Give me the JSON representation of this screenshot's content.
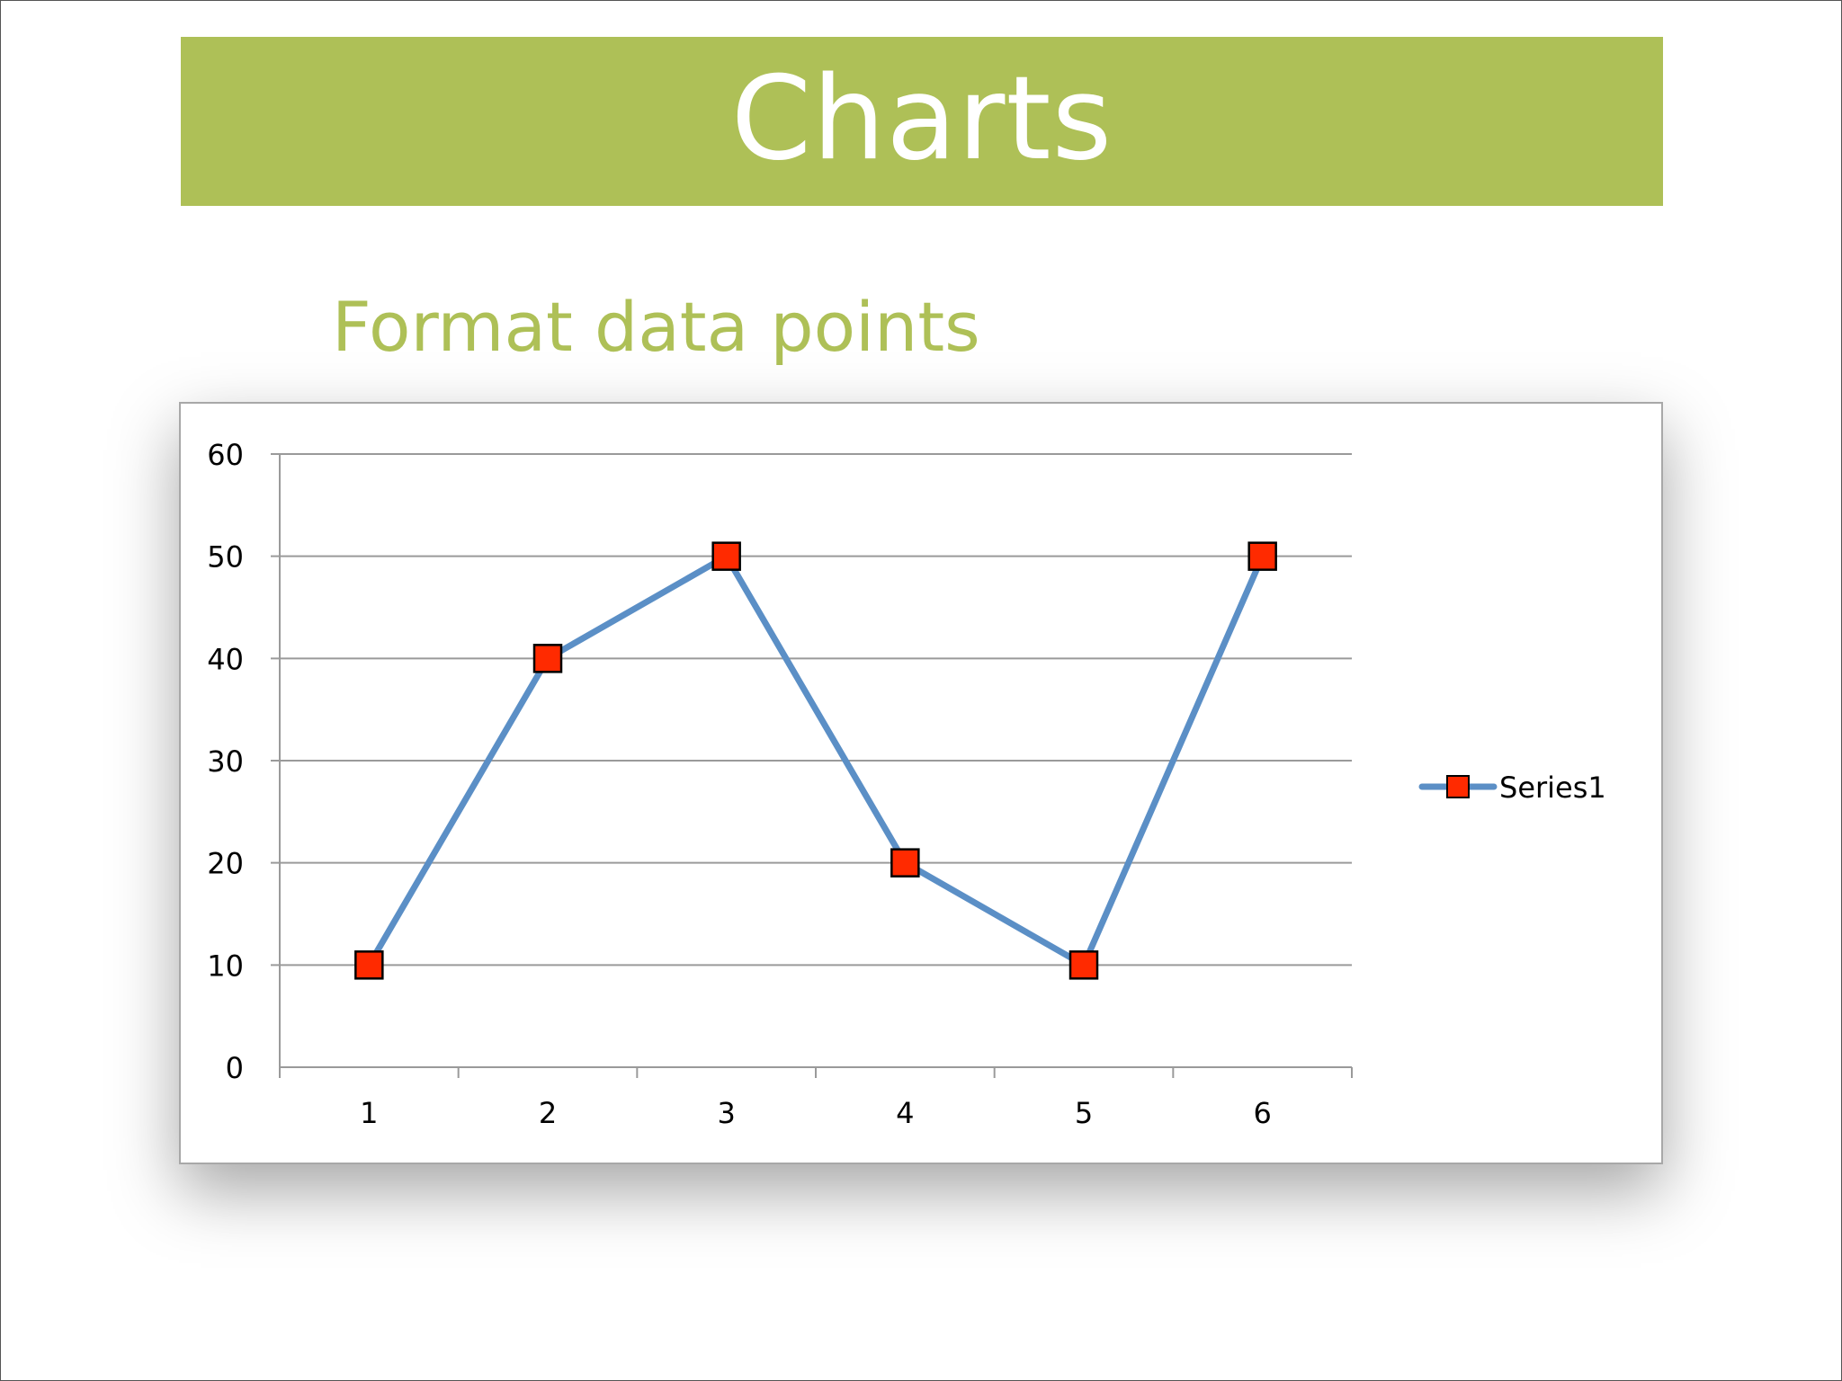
{
  "slide": {
    "title": "Charts",
    "subtitle": "Format data points",
    "accent_color": "#aec057",
    "title_text_color": "#ffffff"
  },
  "chart_data": {
    "type": "line",
    "x": [
      1,
      2,
      3,
      4,
      5,
      6
    ],
    "categories": [
      "1",
      "2",
      "3",
      "4",
      "5",
      "6"
    ],
    "series": [
      {
        "name": "Series1",
        "values": [
          10,
          40,
          50,
          20,
          10,
          50
        ],
        "line_color": "#5b8fc6",
        "marker": "square",
        "marker_color": "#ff2a00"
      }
    ],
    "title": "",
    "xlabel": "",
    "ylabel": "",
    "ylim": [
      0,
      60
    ],
    "yticks": [
      "0",
      "10",
      "20",
      "30",
      "40",
      "50",
      "60"
    ],
    "grid": true,
    "legend_position": "right"
  }
}
